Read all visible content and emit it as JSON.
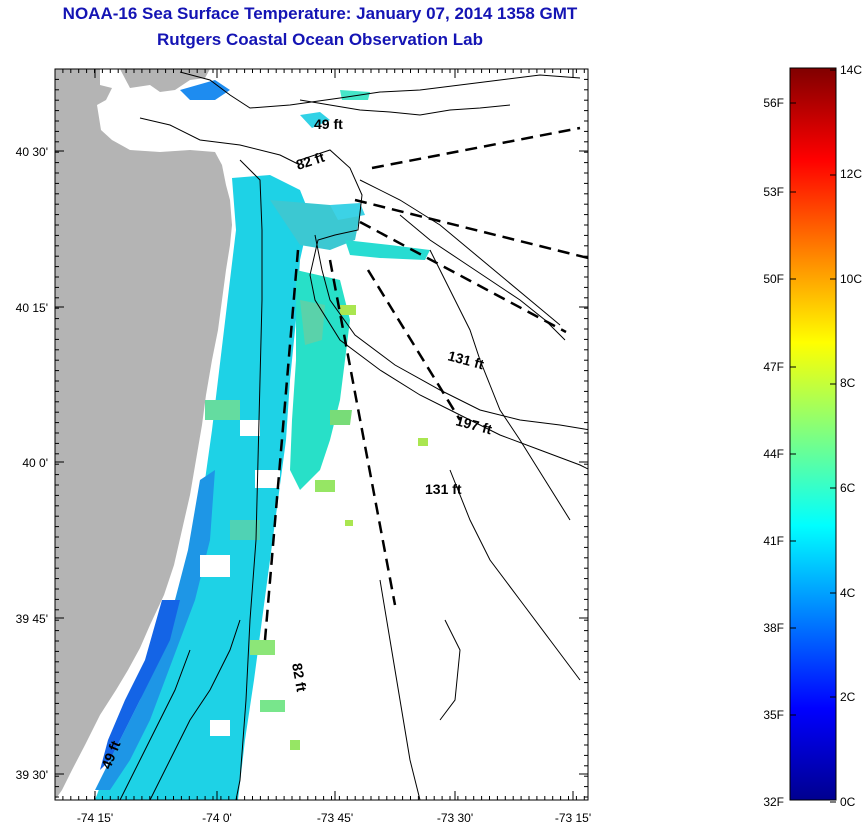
{
  "title": "NOAA-16 Sea Surface Temperature:  January 07, 2014 1358 GMT",
  "subtitle": "Rutgers Coastal Ocean Observation Lab",
  "map": {
    "lon_ticks": [
      "-74 15'",
      "-74 0'",
      "-73 45'",
      "-73 30'",
      "-73 15'"
    ],
    "lat_ticks": [
      "40 30'",
      "40 15'",
      "40 0'",
      "39 45'",
      "39 30'"
    ],
    "depth_labels": [
      "49 ft",
      "82 ft",
      "131 ft",
      "197 ft",
      "131 ft",
      "82 ft",
      "49 ft"
    ],
    "colors": {
      "land": "#b4b4b4",
      "ocean_nodata": "#ffffff",
      "contour": "#000000"
    }
  },
  "colorbar": {
    "celsius_labels": [
      "14C",
      "12C",
      "10C",
      "8C",
      "6C",
      "4C",
      "2C",
      "0C"
    ],
    "fahrenheit_labels": [
      "56F",
      "53F",
      "50F",
      "47F",
      "44F",
      "41F",
      "38F",
      "35F",
      "32F"
    ],
    "colormap": "jet",
    "range_c": [
      0,
      14
    ]
  }
}
